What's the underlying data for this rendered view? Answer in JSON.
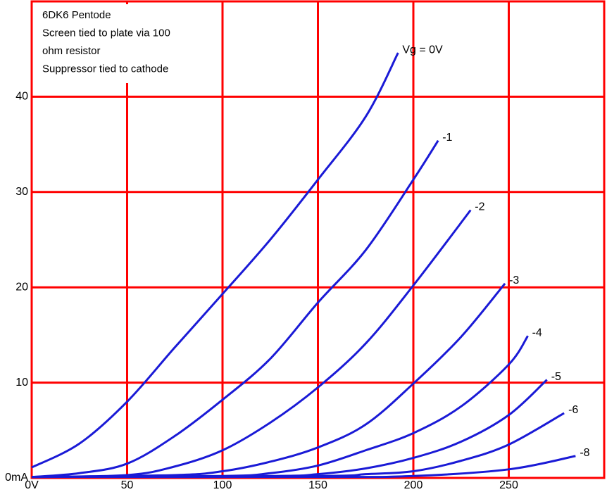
{
  "chart_data": {
    "type": "line",
    "annotation": [
      "6DK6 Pentode",
      "Screen tied to plate via 100",
      "ohm resistor",
      "Suppressor tied to cathode"
    ],
    "xlim": [
      0,
      300
    ],
    "ylim": [
      0,
      50
    ],
    "xticks": [
      {
        "value": 0,
        "label": "0V"
      },
      50,
      100,
      150,
      200,
      250
    ],
    "yticks": [
      {
        "value": 0,
        "label": "0mA"
      },
      10,
      20,
      30,
      40
    ],
    "grid": true,
    "grid_color": "#ff0000",
    "series": [
      {
        "name": "Vg = 0V",
        "color": "#1a1ad6",
        "x": [
          0,
          25,
          50,
          75,
          100,
          125,
          150,
          175,
          192
        ],
        "values": [
          1.1,
          3.6,
          8.0,
          13.7,
          19.3,
          25.0,
          31.3,
          37.9,
          44.6
        ]
      },
      {
        "name": "-1",
        "color": "#1a1ad6",
        "x": [
          0,
          25,
          50,
          75,
          100,
          125,
          150,
          175,
          200,
          213
        ],
        "values": [
          0.1,
          0.5,
          1.5,
          4.4,
          8.2,
          12.5,
          18.4,
          23.9,
          31.3,
          35.4
        ]
      },
      {
        "name": "-2",
        "color": "#1a1ad6",
        "x": [
          0,
          50,
          75,
          100,
          125,
          150,
          175,
          200,
          230
        ],
        "values": [
          0.1,
          0.3,
          1.2,
          2.9,
          5.8,
          9.5,
          14.1,
          20.2,
          28.1
        ]
      },
      {
        "name": "-3",
        "color": "#1a1ad6",
        "x": [
          0,
          75,
          100,
          125,
          150,
          175,
          200,
          225,
          248
        ],
        "values": [
          0.1,
          0.3,
          0.7,
          1.7,
          3.2,
          5.6,
          9.9,
          14.8,
          20.4
        ]
      },
      {
        "name": "-4",
        "color": "#1a1ad6",
        "x": [
          0,
          100,
          125,
          150,
          175,
          200,
          225,
          250,
          260
        ],
        "values": [
          0.1,
          0.2,
          0.5,
          1.3,
          2.9,
          4.7,
          7.5,
          11.9,
          14.9
        ]
      },
      {
        "name": "-5",
        "color": "#1a1ad6",
        "x": [
          0,
          125,
          150,
          175,
          200,
          225,
          250,
          270
        ],
        "values": [
          0.1,
          0.2,
          0.4,
          1.0,
          2.1,
          3.8,
          6.6,
          10.3
        ]
      },
      {
        "name": "-6",
        "color": "#1a1ad6",
        "x": [
          0,
          150,
          175,
          200,
          225,
          250,
          279
        ],
        "values": [
          0.1,
          0.2,
          0.4,
          0.7,
          1.8,
          3.5,
          6.8
        ]
      },
      {
        "name": "-8",
        "color": "#1a1ad6",
        "x": [
          0,
          150,
          200,
          250,
          285
        ],
        "values": [
          0.1,
          0.1,
          0.2,
          0.9,
          2.3
        ]
      }
    ]
  }
}
